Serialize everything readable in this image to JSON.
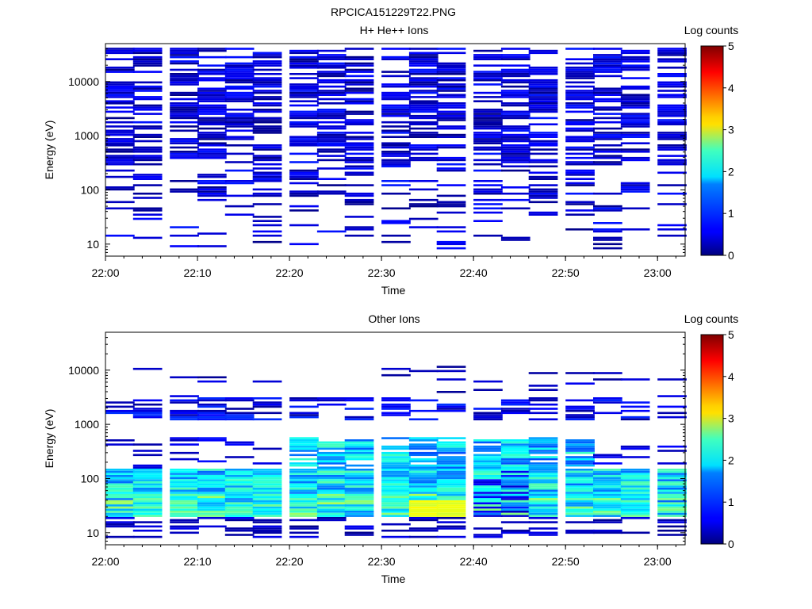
{
  "figure": {
    "title": "RPCICA151229T22.PNG"
  },
  "colorbar": {
    "label": "Log counts",
    "range": [
      0,
      5
    ],
    "ticks": [
      "0",
      "1",
      "2",
      "3",
      "4",
      "5"
    ],
    "colormap": "jet"
  },
  "chart_data": [
    {
      "type": "heatmap",
      "title": "H+ He++ Ions",
      "xlabel": "Time",
      "ylabel": "Energy (eV)",
      "y_scale": "log",
      "xlim": [
        "22:00",
        "23:03"
      ],
      "ylim": [
        6,
        50000
      ],
      "x_ticks": [
        "22:00",
        "22:10",
        "22:20",
        "22:30",
        "22:40",
        "22:50",
        "23:00"
      ],
      "y_ticks": [
        "10",
        "100",
        "1000",
        "10000"
      ],
      "time_bins_start": [
        "22:00",
        "22:03",
        "22:07",
        "22:10",
        "22:13",
        "22:16",
        "22:20",
        "22:23",
        "22:26",
        "22:30",
        "22:33",
        "22:36",
        "22:40",
        "22:43",
        "22:46",
        "22:50",
        "22:53",
        "22:56",
        "23:00"
      ],
      "bin_width_min": 3.25,
      "z_label": "Log counts",
      "z_range": [
        0,
        5
      ],
      "notes": "Sparse low-level counts (~0-1) across all energies 8 eV - 40 keV; denser above 300 eV."
    },
    {
      "type": "heatmap",
      "title": "Other Ions",
      "xlabel": "Time",
      "ylabel": "Energy (eV)",
      "y_scale": "log",
      "xlim": [
        "22:00",
        "23:03"
      ],
      "ylim": [
        6,
        50000
      ],
      "x_ticks": [
        "22:00",
        "22:10",
        "22:20",
        "22:30",
        "22:40",
        "22:50",
        "23:00"
      ],
      "y_ticks": [
        "10",
        "100",
        "1000",
        "10000"
      ],
      "time_bins_start": [
        "22:00",
        "22:03",
        "22:07",
        "22:10",
        "22:13",
        "22:16",
        "22:20",
        "22:23",
        "22:26",
        "22:30",
        "22:33",
        "22:36",
        "22:40",
        "22:43",
        "22:46",
        "22:50",
        "22:53",
        "22:56",
        "23:00"
      ],
      "bin_width_min": 3.25,
      "z_label": "Log counts",
      "z_range": [
        0,
        5
      ],
      "notes": "Intense band 20-150 eV (log counts ~1.5-3.2), extending to ~600 eV between 22:20 and 22:50; sparse counts near 1.5-3 keV."
    }
  ]
}
